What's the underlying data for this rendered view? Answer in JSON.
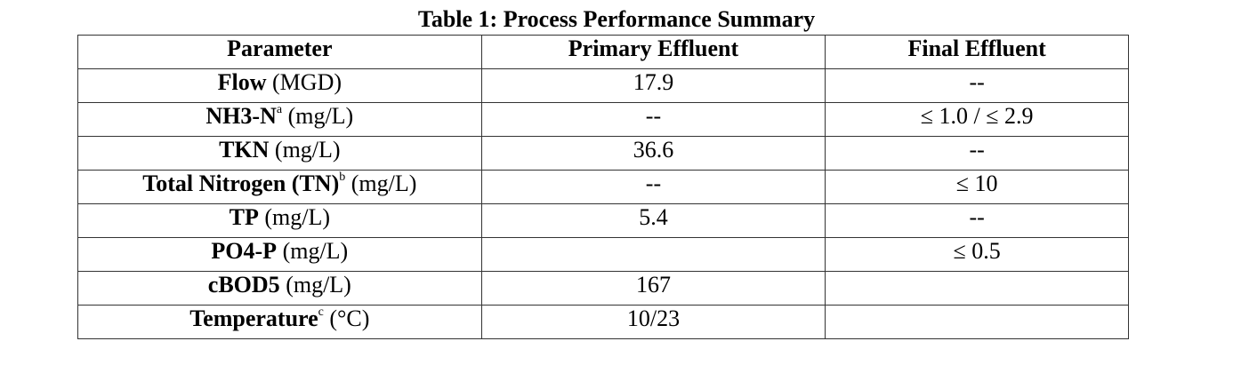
{
  "header": {
    "title": "Table 1:  Process Performance Summary"
  },
  "table": {
    "columns": [
      "Parameter",
      "Primary Effluent",
      "Final Effluent"
    ],
    "rows": [
      {
        "parameter": {
          "name": "Flow",
          "unit": "(MGD)"
        },
        "primary": "17.9",
        "final": "--"
      },
      {
        "parameter": {
          "name": "NH3-N",
          "sup": "a",
          "unit": "(mg/L)"
        },
        "primary": "--",
        "final": "≤ 1.0 / ≤ 2.9"
      },
      {
        "parameter": {
          "name": "TKN",
          "unit": "(mg/L)"
        },
        "primary": "36.6",
        "final": "--"
      },
      {
        "parameter": {
          "name": "Total Nitrogen (TN)",
          "sup": "b",
          "unit": "(mg/L)"
        },
        "primary": "--",
        "final": "≤ 10"
      },
      {
        "parameter": {
          "name": "TP",
          "unit": "(mg/L)"
        },
        "primary": "5.4",
        "final": "--"
      },
      {
        "parameter": {
          "name": "PO4-P",
          "unit": "(mg/L)"
        },
        "primary": null,
        "final": "≤ 0.5"
      },
      {
        "parameter": {
          "name": "cBOD5",
          "unit": "(mg/L)"
        },
        "primary": "167",
        "final": null
      },
      {
        "parameter": {
          "name": "Temperature",
          "sup": "c",
          "unit": "(°C)"
        },
        "primary": "10/23",
        "final": null
      }
    ]
  }
}
